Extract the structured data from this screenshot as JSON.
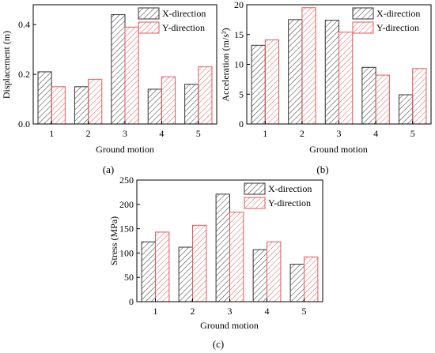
{
  "chart_data": [
    {
      "panel_label": "(a)",
      "type": "bar",
      "xlabel": "Ground motion",
      "ylabel": "Displacement (m)",
      "categories": [
        "1",
        "2",
        "3",
        "4",
        "5"
      ],
      "ylim": [
        0,
        0.48
      ],
      "yticks": [
        "0.0",
        "0.2",
        "0.4"
      ],
      "legend_position": "top-right",
      "series": [
        {
          "name": "X-direction",
          "values": [
            0.21,
            0.15,
            0.44,
            0.14,
            0.16
          ]
        },
        {
          "name": "Y-direction",
          "values": [
            0.15,
            0.18,
            0.39,
            0.19,
            0.23
          ]
        }
      ]
    },
    {
      "panel_label": "(b)",
      "type": "bar",
      "xlabel": "Ground motion",
      "ylabel": "Acceleration (m/s²)",
      "categories": [
        "1",
        "2",
        "3",
        "4",
        "5"
      ],
      "ylim": [
        0,
        20
      ],
      "yticks": [
        "0",
        "5",
        "10",
        "15",
        "20"
      ],
      "legend_position": "top-right",
      "series": [
        {
          "name": "X-direction",
          "values": [
            13.2,
            17.5,
            17.4,
            9.5,
            4.9
          ]
        },
        {
          "name": "Y-direction",
          "values": [
            14.1,
            19.5,
            15.4,
            8.2,
            9.3
          ]
        }
      ]
    },
    {
      "panel_label": "(c)",
      "type": "bar",
      "xlabel": "Ground motion",
      "ylabel": "Stress (MPa)",
      "categories": [
        "1",
        "2",
        "3",
        "4",
        "5"
      ],
      "ylim": [
        0,
        250
      ],
      "yticks": [
        "0",
        "50",
        "100",
        "150",
        "200",
        "250"
      ],
      "legend_position": "top-right",
      "series": [
        {
          "name": "X-direction",
          "values": [
            123,
            112,
            221,
            107,
            77
          ]
        },
        {
          "name": "Y-direction",
          "values": [
            143,
            157,
            184,
            123,
            92
          ]
        }
      ]
    }
  ],
  "colors": {
    "x_series": "#333333",
    "y_series": "#e05a5a"
  }
}
